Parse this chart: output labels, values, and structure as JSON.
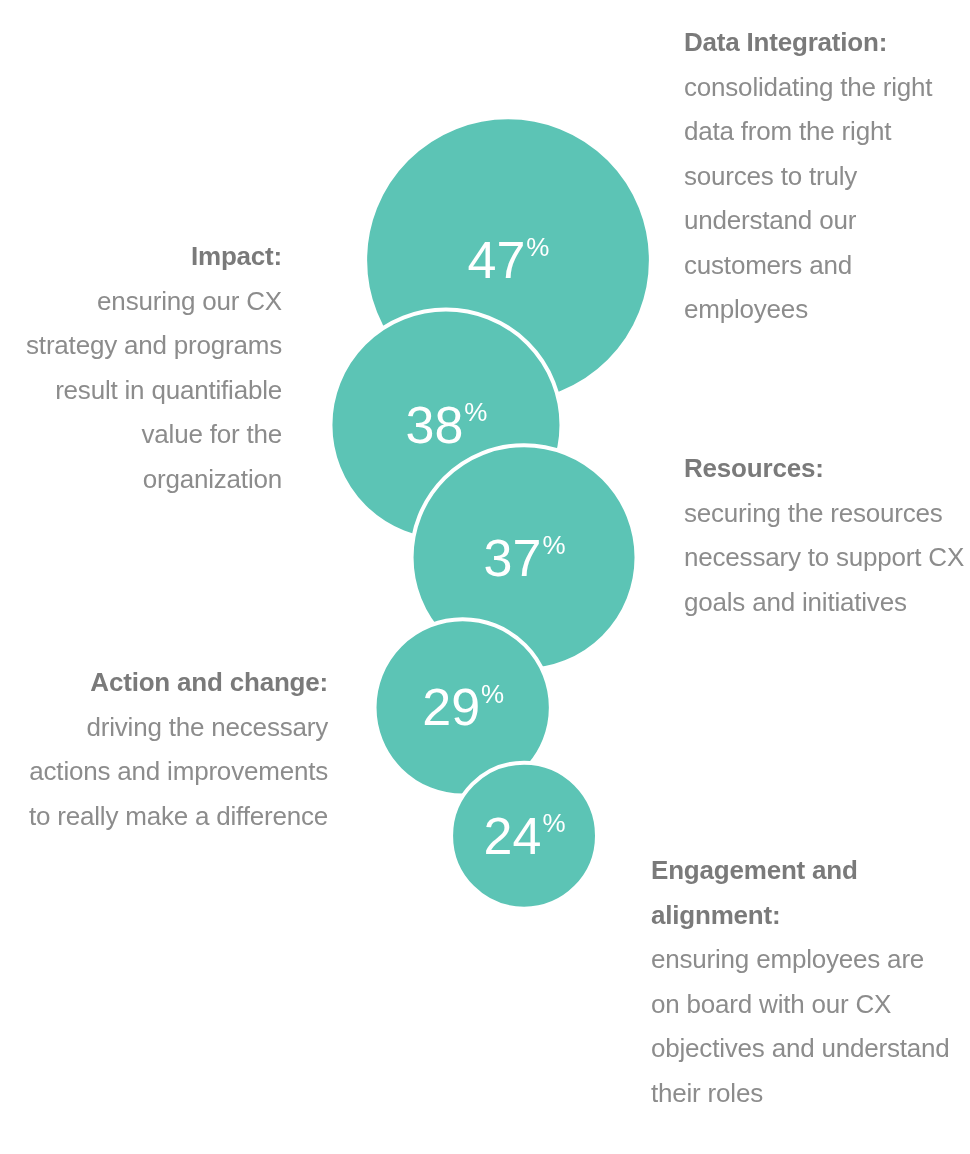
{
  "chart_data": {
    "type": "other",
    "categories": [
      null,
      null,
      null,
      null,
      null
    ],
    "values": [
      47,
      38,
      37,
      29,
      24
    ],
    "value_labels": [
      "47%",
      "38%",
      "37%",
      "29%",
      "24%"
    ],
    "color": "#5cc4b5",
    "annotations": [
      "Data Integration:",
      "consolidating the right data from the right sources to truly understand our customers and employees",
      "Impact:",
      "ensuring our CX strategy and programs result in quantifiable value for the organization",
      "Resources:",
      "securing the resources necessary to support CX goals and initiatives",
      "Action and change:",
      "driving the necessary actions and improvements to really make a difference",
      "Engagement and alignment:",
      "ensuring employees are on board with our CX objectives and understand their roles"
    ]
  }
}
